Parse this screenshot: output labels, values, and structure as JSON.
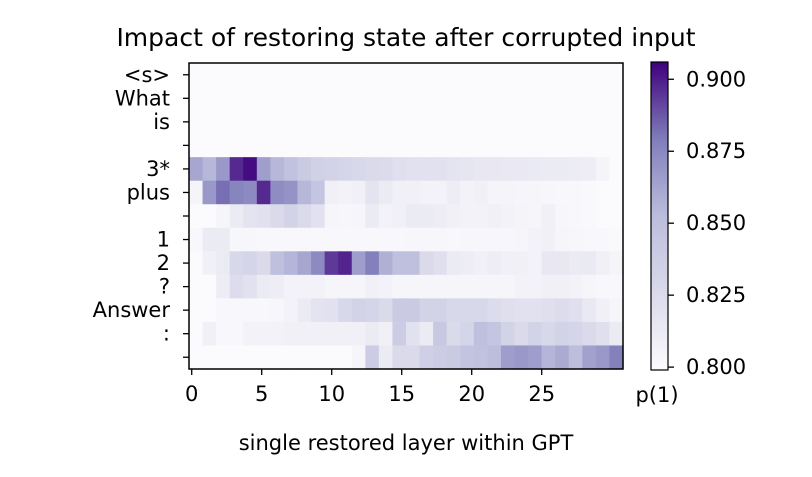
{
  "chart_data": {
    "type": "heatmap",
    "title": "Impact of restoring state after corrupted input",
    "xlabel": "single restored layer within GPT",
    "ylabel": "",
    "x_ticks": [
      0,
      5,
      10,
      15,
      20,
      25
    ],
    "x_range": [
      0,
      31
    ],
    "rows": [
      "<s>",
      "What",
      "is",
      "",
      "3*",
      "plus",
      "",
      "1",
      "2",
      "?",
      "Answer",
      ":",
      ""
    ],
    "colorbar": {
      "label": "p(1)",
      "ticks": [
        "0.800",
        "0.825",
        "0.850",
        "0.875",
        "0.900"
      ],
      "vmin": 0.799,
      "vmax": 0.906,
      "colors": [
        "#fcfbfd",
        "#dadaeb",
        "#9e9ac8",
        "#6a51a3",
        "#3f007d"
      ]
    },
    "values": [
      [
        0.8,
        0.8,
        0.8,
        0.8,
        0.8,
        0.8,
        0.8,
        0.8,
        0.8,
        0.8,
        0.8,
        0.8,
        0.8,
        0.8,
        0.8,
        0.8,
        0.8,
        0.8,
        0.8,
        0.8,
        0.8,
        0.8,
        0.8,
        0.8,
        0.8,
        0.8,
        0.8,
        0.8,
        0.8,
        0.8,
        0.8,
        0.8
      ],
      [
        0.8,
        0.8,
        0.8,
        0.8,
        0.8,
        0.8,
        0.8,
        0.8,
        0.8,
        0.8,
        0.8,
        0.8,
        0.8,
        0.8,
        0.8,
        0.8,
        0.8,
        0.8,
        0.8,
        0.8,
        0.8,
        0.8,
        0.8,
        0.8,
        0.8,
        0.8,
        0.8,
        0.8,
        0.8,
        0.8,
        0.8,
        0.8
      ],
      [
        0.8,
        0.8,
        0.8,
        0.8,
        0.8,
        0.8,
        0.8,
        0.8,
        0.8,
        0.8,
        0.8,
        0.8,
        0.8,
        0.8,
        0.8,
        0.8,
        0.8,
        0.8,
        0.8,
        0.8,
        0.8,
        0.8,
        0.8,
        0.8,
        0.8,
        0.8,
        0.8,
        0.8,
        0.8,
        0.8,
        0.8,
        0.8
      ],
      [
        0.8,
        0.8,
        0.8,
        0.8,
        0.8,
        0.8,
        0.8,
        0.8,
        0.8,
        0.8,
        0.8,
        0.8,
        0.8,
        0.8,
        0.8,
        0.8,
        0.8,
        0.8,
        0.8,
        0.8,
        0.8,
        0.8,
        0.8,
        0.8,
        0.8,
        0.8,
        0.8,
        0.8,
        0.8,
        0.8,
        0.8,
        0.8
      ],
      [
        0.862,
        0.855,
        0.868,
        0.895,
        0.903,
        0.865,
        0.855,
        0.848,
        0.84,
        0.835,
        0.832,
        0.83,
        0.828,
        0.826,
        0.825,
        0.822,
        0.82,
        0.82,
        0.82,
        0.818,
        0.816,
        0.815,
        0.815,
        0.814,
        0.814,
        0.813,
        0.812,
        0.812,
        0.811,
        0.81,
        0.805,
        0.8
      ],
      [
        0.805,
        0.868,
        0.882,
        0.876,
        0.874,
        0.895,
        0.873,
        0.87,
        0.855,
        0.845,
        0.808,
        0.806,
        0.808,
        0.818,
        0.812,
        0.808,
        0.808,
        0.806,
        0.806,
        0.81,
        0.806,
        0.808,
        0.805,
        0.805,
        0.804,
        0.804,
        0.803,
        0.802,
        0.802,
        0.801,
        0.8,
        0.8
      ],
      [
        0.8,
        0.8,
        0.804,
        0.812,
        0.818,
        0.82,
        0.826,
        0.832,
        0.826,
        0.82,
        0.804,
        0.803,
        0.804,
        0.812,
        0.806,
        0.808,
        0.812,
        0.812,
        0.81,
        0.808,
        0.806,
        0.806,
        0.808,
        0.806,
        0.805,
        0.804,
        0.808,
        0.803,
        0.802,
        0.801,
        0.8,
        0.8
      ],
      [
        0.802,
        0.812,
        0.812,
        0.803,
        0.803,
        0.802,
        0.802,
        0.802,
        0.802,
        0.802,
        0.802,
        0.802,
        0.802,
        0.802,
        0.802,
        0.802,
        0.803,
        0.803,
        0.803,
        0.802,
        0.803,
        0.803,
        0.803,
        0.803,
        0.804,
        0.806,
        0.808,
        0.804,
        0.803,
        0.802,
        0.802,
        0.801
      ],
      [
        0.8,
        0.808,
        0.812,
        0.828,
        0.83,
        0.826,
        0.85,
        0.856,
        0.862,
        0.874,
        0.892,
        0.896,
        0.866,
        0.878,
        0.858,
        0.85,
        0.85,
        0.826,
        0.822,
        0.812,
        0.81,
        0.808,
        0.81,
        0.808,
        0.808,
        0.806,
        0.815,
        0.815,
        0.812,
        0.813,
        0.808,
        0.805
      ],
      [
        0.8,
        0.8,
        0.81,
        0.824,
        0.82,
        0.812,
        0.81,
        0.806,
        0.806,
        0.806,
        0.804,
        0.804,
        0.804,
        0.808,
        0.806,
        0.804,
        0.804,
        0.804,
        0.804,
        0.804,
        0.804,
        0.804,
        0.804,
        0.804,
        0.806,
        0.806,
        0.808,
        0.808,
        0.806,
        0.804,
        0.802,
        0.802
      ],
      [
        0.8,
        0.8,
        0.802,
        0.802,
        0.802,
        0.802,
        0.803,
        0.806,
        0.812,
        0.818,
        0.82,
        0.828,
        0.832,
        0.83,
        0.826,
        0.84,
        0.84,
        0.832,
        0.832,
        0.828,
        0.828,
        0.828,
        0.824,
        0.822,
        0.82,
        0.82,
        0.822,
        0.824,
        0.822,
        0.814,
        0.808,
        0.804
      ],
      [
        0.8,
        0.808,
        0.802,
        0.802,
        0.806,
        0.806,
        0.806,
        0.808,
        0.808,
        0.808,
        0.808,
        0.808,
        0.808,
        0.812,
        0.808,
        0.838,
        0.82,
        0.812,
        0.842,
        0.826,
        0.83,
        0.85,
        0.845,
        0.832,
        0.826,
        0.832,
        0.828,
        0.832,
        0.83,
        0.826,
        0.822,
        0.812
      ],
      [
        0.8,
        0.8,
        0.8,
        0.8,
        0.8,
        0.8,
        0.8,
        0.8,
        0.8,
        0.8,
        0.8,
        0.8,
        0.804,
        0.838,
        0.812,
        0.826,
        0.826,
        0.836,
        0.838,
        0.84,
        0.846,
        0.848,
        0.852,
        0.866,
        0.868,
        0.866,
        0.856,
        0.86,
        0.852,
        0.864,
        0.868,
        0.878
      ]
    ]
  }
}
